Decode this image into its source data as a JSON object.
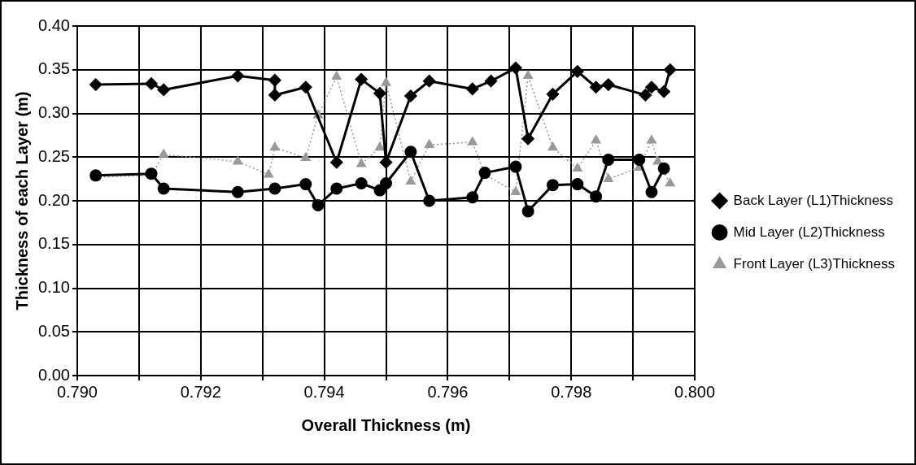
{
  "chart_data": {
    "type": "line",
    "xlabel": "Overall Thickness (m)",
    "ylabel": "Thickness of each Layer (m)",
    "xlim": [
      0.79,
      0.8
    ],
    "xticks": [
      {
        "value": 0.79,
        "label": "0.790"
      },
      {
        "value": 0.791,
        "label": null
      },
      {
        "value": 0.792,
        "label": "0.792"
      },
      {
        "value": 0.793,
        "label": null
      },
      {
        "value": 0.794,
        "label": "0.794"
      },
      {
        "value": 0.795,
        "label": null
      },
      {
        "value": 0.796,
        "label": "0.796"
      },
      {
        "value": 0.797,
        "label": null
      },
      {
        "value": 0.798,
        "label": "0.798"
      },
      {
        "value": 0.799,
        "label": null
      },
      {
        "value": 0.8,
        "label": "0.800"
      }
    ],
    "ylim": [
      0,
      0.4
    ],
    "yticks": [
      {
        "value": 0,
        "label": "0.00"
      },
      {
        "value": 0.05,
        "label": "0.05"
      },
      {
        "value": 0.1,
        "label": "0.10"
      },
      {
        "value": 0.15,
        "label": "0.15"
      },
      {
        "value": 0.2,
        "label": "0.20"
      },
      {
        "value": 0.25,
        "label": "0.25"
      },
      {
        "value": 0.3,
        "label": "0.30"
      },
      {
        "value": 0.35,
        "label": "0.35"
      },
      {
        "value": 0.4,
        "label": "0.40"
      }
    ],
    "grid": true,
    "legend": "right",
    "series": [
      {
        "name": "Back Layer (L1)Thickness",
        "color": "#000000",
        "marker": "diamond",
        "line_style": "solid",
        "x": [
          0.7903,
          0.7912,
          0.7914,
          0.7926,
          0.7932,
          0.7932,
          0.7937,
          0.7942,
          0.7946,
          0.7949,
          0.795,
          0.7954,
          0.7957,
          0.7964,
          0.7967,
          0.7971,
          0.7973,
          0.7977,
          0.7981,
          0.7984,
          0.7986,
          0.7992,
          0.7993,
          0.7995,
          0.7996
        ],
        "values": [
          0.333,
          0.334,
          0.327,
          0.343,
          0.338,
          0.321,
          0.33,
          0.244,
          0.339,
          0.323,
          0.244,
          0.32,
          0.337,
          0.328,
          0.337,
          0.352,
          0.271,
          0.322,
          0.348,
          0.33,
          0.333,
          0.321,
          0.33,
          0.325,
          0.35
        ]
      },
      {
        "name": "Mid Layer (L2)Thickness",
        "color": "#000000",
        "marker": "circle",
        "line_style": "solid",
        "x": [
          0.7903,
          0.7912,
          0.7914,
          0.7926,
          0.7932,
          0.7937,
          0.7939,
          0.7942,
          0.7946,
          0.7949,
          0.795,
          0.7954,
          0.7957,
          0.7964,
          0.7966,
          0.7971,
          0.7973,
          0.7977,
          0.7981,
          0.7984,
          0.7986,
          0.7991,
          0.7993,
          0.7995
        ],
        "values": [
          0.229,
          0.231,
          0.214,
          0.21,
          0.214,
          0.219,
          0.195,
          0.214,
          0.22,
          0.212,
          0.22,
          0.256,
          0.2,
          0.204,
          0.232,
          0.239,
          0.188,
          0.218,
          0.219,
          0.205,
          0.247,
          0.247,
          0.21,
          0.237
        ]
      },
      {
        "name": "Front Layer (L3)Thickness",
        "color": "#999999",
        "marker": "triangle",
        "line_style": "dotted",
        "x": [
          0.7903,
          0.7912,
          0.7914,
          0.7926,
          0.7931,
          0.7932,
          0.7937,
          0.7939,
          0.7942,
          0.7946,
          0.7949,
          0.795,
          0.7954,
          0.7957,
          0.7964,
          0.7966,
          0.7971,
          0.7973,
          0.7977,
          0.7981,
          0.7984,
          0.7986,
          0.7991,
          0.7993,
          0.7994,
          0.7996
        ],
        "values": [
          0.227,
          0.229,
          0.253,
          0.245,
          0.23,
          0.261,
          0.249,
          0.298,
          0.342,
          0.242,
          0.261,
          0.335,
          0.222,
          0.264,
          0.267,
          0.23,
          0.21,
          0.343,
          0.261,
          0.237,
          0.269,
          0.225,
          0.238,
          0.269,
          0.245,
          0.22
        ]
      }
    ]
  }
}
